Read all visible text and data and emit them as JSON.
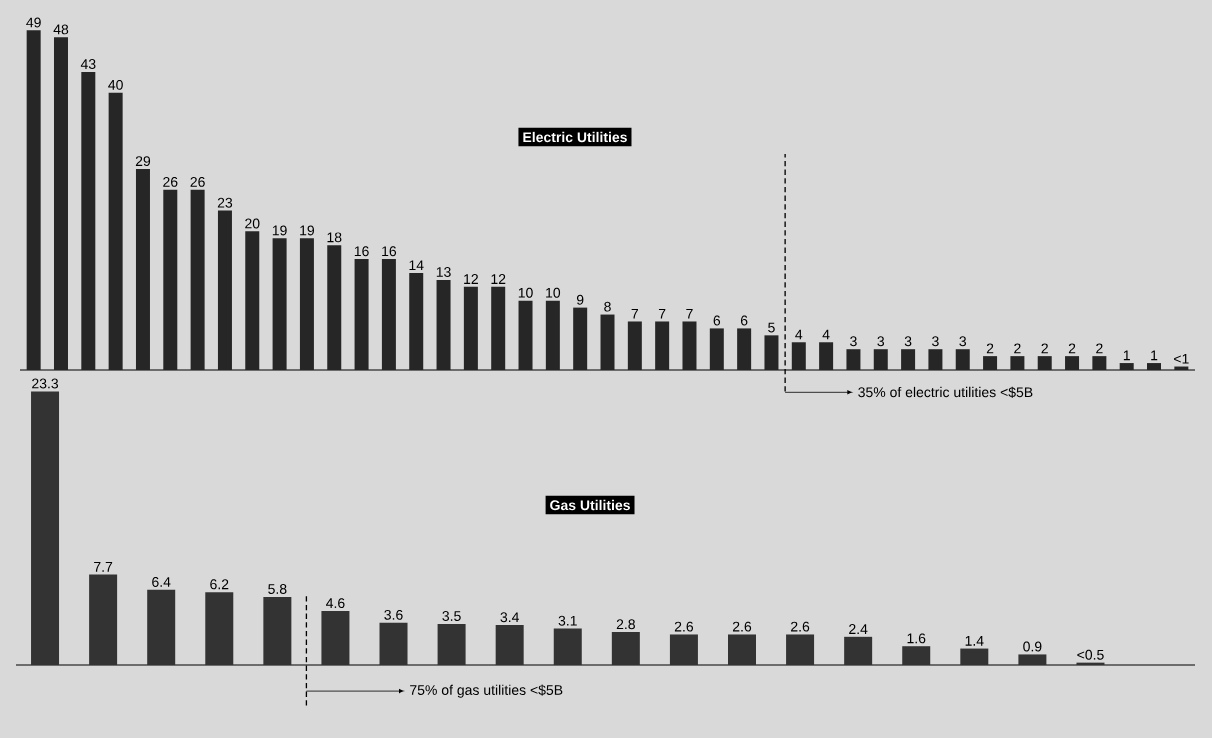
{
  "chart_data": [
    {
      "type": "bar",
      "title": "Electric Utilities",
      "color": "#262626",
      "categories": [
        null,
        null,
        null,
        null,
        null,
        null,
        null,
        null,
        null,
        null,
        null,
        null,
        null,
        null,
        null,
        null,
        null,
        null,
        null,
        null,
        null,
        null,
        null,
        null,
        null,
        null,
        null,
        null,
        null,
        null,
        null,
        null,
        null,
        null,
        null,
        null,
        null,
        null,
        null,
        null,
        null,
        null,
        null
      ],
      "values": [
        49,
        48,
        43,
        40,
        29,
        26,
        26,
        23,
        20,
        19,
        19,
        18,
        16,
        16,
        14,
        13,
        12,
        12,
        10,
        10,
        9,
        8,
        7,
        7,
        7,
        6,
        6,
        5,
        4,
        4,
        3,
        3,
        3,
        3,
        3,
        2,
        2,
        2,
        2,
        2,
        1,
        1,
        0.5
      ],
      "value_labels": [
        "49",
        "48",
        "43",
        "40",
        "29",
        "26",
        "26",
        "23",
        "20",
        "19",
        "19",
        "18",
        "16",
        "16",
        "14",
        "13",
        "12",
        "12",
        "10",
        "10",
        "9",
        "8",
        "7",
        "7",
        "7",
        "6",
        "6",
        "5",
        "4",
        "4",
        "3",
        "3",
        "3",
        "3",
        "3",
        "2",
        "2",
        "2",
        "2",
        "2",
        "1",
        "1",
        "<1"
      ],
      "annotations": [
        "35% of electric utilities <$5B"
      ]
    },
    {
      "type": "bar",
      "title": "Gas Utilities",
      "color": "#333333",
      "categories": [
        null,
        null,
        null,
        null,
        null,
        null,
        null,
        null,
        null,
        null,
        null,
        null,
        null,
        null,
        null,
        null,
        null,
        null,
        null
      ],
      "values": [
        23.3,
        7.7,
        6.4,
        6.2,
        5.8,
        4.6,
        3.6,
        3.5,
        3.4,
        3.1,
        2.8,
        2.6,
        2.6,
        2.6,
        2.4,
        1.6,
        1.4,
        0.9,
        0.2
      ],
      "value_labels": [
        "23.3",
        "7.7",
        "6.4",
        "6.2",
        "5.8",
        "4.6",
        "3.6",
        "3.5",
        "3.4",
        "3.1",
        "2.8",
        "2.6",
        "2.6",
        "2.6",
        "2.4",
        "1.6",
        "1.4",
        "0.9",
        "<0.5"
      ],
      "annotations": [
        "75% of gas utilities <$5B"
      ]
    }
  ]
}
